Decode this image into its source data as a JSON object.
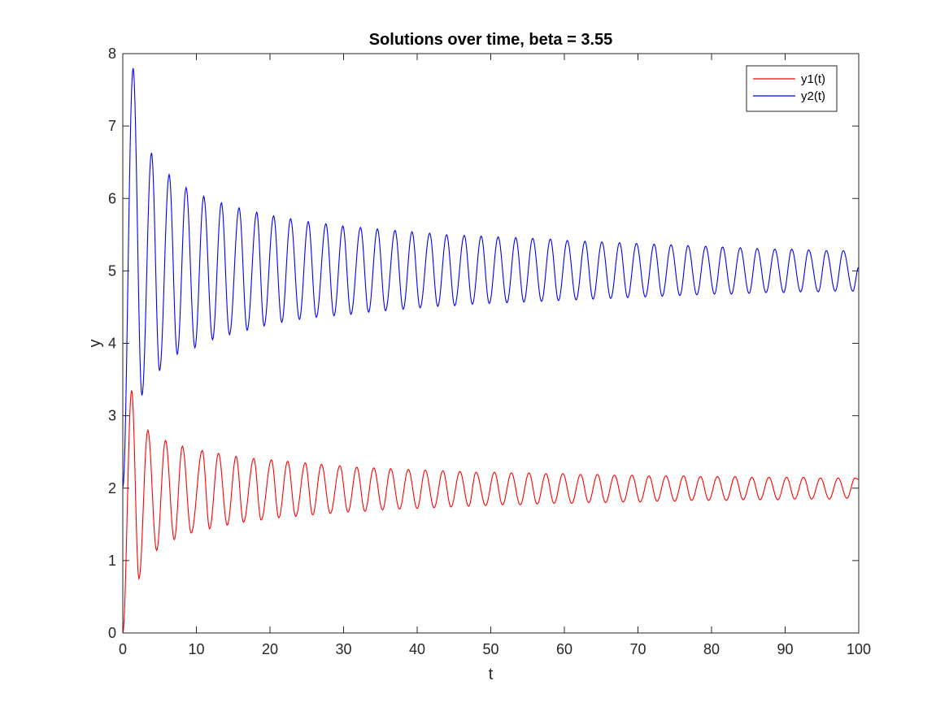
{
  "chart_data": {
    "type": "line",
    "title": "Solutions over time, beta = 3.55",
    "xlabel": "t",
    "ylabel": "y",
    "xlim": [
      0,
      100
    ],
    "ylim": [
      0,
      8
    ],
    "xticks": [
      0,
      10,
      20,
      30,
      40,
      50,
      60,
      70,
      80,
      90,
      100
    ],
    "yticks": [
      0,
      1,
      2,
      3,
      4,
      5,
      6,
      7,
      8
    ],
    "grid": false,
    "legend_position": "top-right",
    "series": [
      {
        "name": "y1(t)",
        "color": "#ff0000",
        "start": [
          0,
          0
        ],
        "equilibrium": 2.0,
        "period": 2.27,
        "peaks": [
          [
            1.2,
            3.35
          ],
          [
            3.4,
            2.8
          ],
          [
            5.8,
            2.66
          ],
          [
            8.1,
            2.58
          ],
          [
            10.8,
            2.52
          ],
          [
            13.0,
            2.48
          ],
          [
            15.4,
            2.44
          ],
          [
            17.8,
            2.41
          ],
          [
            20.2,
            2.39
          ],
          [
            22.4,
            2.37
          ],
          [
            24.8,
            2.35
          ],
          [
            27.0,
            2.33
          ],
          [
            29.5,
            2.31
          ],
          [
            31.8,
            2.29
          ],
          [
            34.1,
            2.28
          ],
          [
            36.4,
            2.27
          ],
          [
            38.8,
            2.26
          ],
          [
            41.1,
            2.25
          ],
          [
            43.5,
            2.24
          ],
          [
            45.8,
            2.23
          ],
          [
            48.0,
            2.22
          ],
          [
            50.5,
            2.22
          ],
          [
            52.8,
            2.21
          ],
          [
            55.2,
            2.21
          ],
          [
            57.5,
            2.2
          ],
          [
            59.8,
            2.2
          ],
          [
            62.2,
            2.19
          ],
          [
            64.5,
            2.19
          ],
          [
            66.8,
            2.18
          ],
          [
            69.2,
            2.18
          ],
          [
            71.5,
            2.17
          ],
          [
            73.8,
            2.17
          ],
          [
            76.2,
            2.17
          ],
          [
            78.5,
            2.16
          ],
          [
            80.8,
            2.16
          ],
          [
            83.2,
            2.16
          ],
          [
            85.5,
            2.15
          ],
          [
            87.8,
            2.15
          ],
          [
            90.2,
            2.15
          ],
          [
            92.5,
            2.15
          ],
          [
            94.8,
            2.14
          ],
          [
            97.2,
            2.14
          ],
          [
            99.5,
            2.14
          ]
        ],
        "troughs": [
          [
            2.2,
            0.75
          ],
          [
            4.6,
            1.14
          ],
          [
            7.0,
            1.29
          ],
          [
            9.3,
            1.38
          ],
          [
            11.8,
            1.44
          ],
          [
            14.2,
            1.49
          ],
          [
            16.4,
            1.53
          ],
          [
            18.8,
            1.56
          ],
          [
            21.2,
            1.59
          ],
          [
            23.5,
            1.61
          ],
          [
            25.8,
            1.63
          ],
          [
            28.2,
            1.65
          ],
          [
            30.6,
            1.67
          ],
          [
            32.9,
            1.68
          ],
          [
            35.3,
            1.7
          ],
          [
            37.6,
            1.71
          ],
          [
            40.0,
            1.72
          ],
          [
            42.3,
            1.73
          ],
          [
            44.6,
            1.74
          ],
          [
            47.0,
            1.75
          ],
          [
            49.3,
            1.76
          ],
          [
            51.6,
            1.77
          ],
          [
            54.0,
            1.77
          ],
          [
            56.3,
            1.78
          ],
          [
            58.6,
            1.79
          ],
          [
            61.0,
            1.79
          ],
          [
            63.3,
            1.8
          ],
          [
            65.6,
            1.8
          ],
          [
            68.0,
            1.81
          ],
          [
            70.3,
            1.81
          ],
          [
            72.6,
            1.82
          ],
          [
            75.0,
            1.82
          ],
          [
            77.3,
            1.83
          ],
          [
            79.6,
            1.83
          ],
          [
            82.0,
            1.83
          ],
          [
            84.3,
            1.84
          ],
          [
            86.6,
            1.84
          ],
          [
            89.0,
            1.84
          ],
          [
            91.3,
            1.85
          ],
          [
            93.6,
            1.85
          ],
          [
            96.0,
            1.85
          ],
          [
            98.4,
            1.86
          ]
        ],
        "end": [
          100,
          2.12
        ]
      },
      {
        "name": "y2(t)",
        "color": "#0000ff",
        "start": [
          0,
          2.0
        ],
        "equilibrium": 5.0,
        "period": 2.27,
        "peaks": [
          [
            1.4,
            7.8
          ],
          [
            3.9,
            6.63
          ],
          [
            6.3,
            6.33
          ],
          [
            8.6,
            6.15
          ],
          [
            11.0,
            6.03
          ],
          [
            13.4,
            5.94
          ],
          [
            15.8,
            5.87
          ],
          [
            18.2,
            5.81
          ],
          [
            20.5,
            5.76
          ],
          [
            22.8,
            5.72
          ],
          [
            25.2,
            5.68
          ],
          [
            27.6,
            5.65
          ],
          [
            29.9,
            5.62
          ],
          [
            32.3,
            5.6
          ],
          [
            34.6,
            5.58
          ],
          [
            37.0,
            5.56
          ],
          [
            39.3,
            5.54
          ],
          [
            41.7,
            5.52
          ],
          [
            44.0,
            5.5
          ],
          [
            46.4,
            5.49
          ],
          [
            48.7,
            5.48
          ],
          [
            51.0,
            5.47
          ],
          [
            53.4,
            5.46
          ],
          [
            55.7,
            5.45
          ],
          [
            58.1,
            5.44
          ],
          [
            60.4,
            5.42
          ],
          [
            62.8,
            5.41
          ],
          [
            65.1,
            5.4
          ],
          [
            67.5,
            5.39
          ],
          [
            69.8,
            5.38
          ],
          [
            72.2,
            5.37
          ],
          [
            74.5,
            5.36
          ],
          [
            76.8,
            5.35
          ],
          [
            79.2,
            5.34
          ],
          [
            81.5,
            5.33
          ],
          [
            83.9,
            5.32
          ],
          [
            86.2,
            5.31
          ],
          [
            88.6,
            5.3
          ],
          [
            90.9,
            5.3
          ],
          [
            93.2,
            5.29
          ],
          [
            95.6,
            5.28
          ],
          [
            97.9,
            5.28
          ]
        ],
        "troughs": [
          [
            2.6,
            3.28
          ],
          [
            5.0,
            3.62
          ],
          [
            7.4,
            3.85
          ],
          [
            9.8,
            3.94
          ],
          [
            12.2,
            4.05
          ],
          [
            14.5,
            4.12
          ],
          [
            16.9,
            4.18
          ],
          [
            19.2,
            4.24
          ],
          [
            21.6,
            4.29
          ],
          [
            24.0,
            4.33
          ],
          [
            26.3,
            4.36
          ],
          [
            28.7,
            4.38
          ],
          [
            31.0,
            4.4
          ],
          [
            33.4,
            4.43
          ],
          [
            35.7,
            4.45
          ],
          [
            38.1,
            4.47
          ],
          [
            40.4,
            4.49
          ],
          [
            42.8,
            4.51
          ],
          [
            45.1,
            4.52
          ],
          [
            47.5,
            4.54
          ],
          [
            49.8,
            4.55
          ],
          [
            52.2,
            4.56
          ],
          [
            54.5,
            4.57
          ],
          [
            56.9,
            4.58
          ],
          [
            59.2,
            4.59
          ],
          [
            61.6,
            4.6
          ],
          [
            63.9,
            4.61
          ],
          [
            66.3,
            4.62
          ],
          [
            68.6,
            4.63
          ],
          [
            71.0,
            4.64
          ],
          [
            73.3,
            4.65
          ],
          [
            75.7,
            4.66
          ],
          [
            78.0,
            4.67
          ],
          [
            80.4,
            4.68
          ],
          [
            82.7,
            4.68
          ],
          [
            85.1,
            4.69
          ],
          [
            87.4,
            4.7
          ],
          [
            89.8,
            4.7
          ],
          [
            92.1,
            4.71
          ],
          [
            94.5,
            4.71
          ],
          [
            96.8,
            4.72
          ],
          [
            99.2,
            4.72
          ]
        ],
        "end": [
          100,
          5.05
        ]
      }
    ]
  }
}
